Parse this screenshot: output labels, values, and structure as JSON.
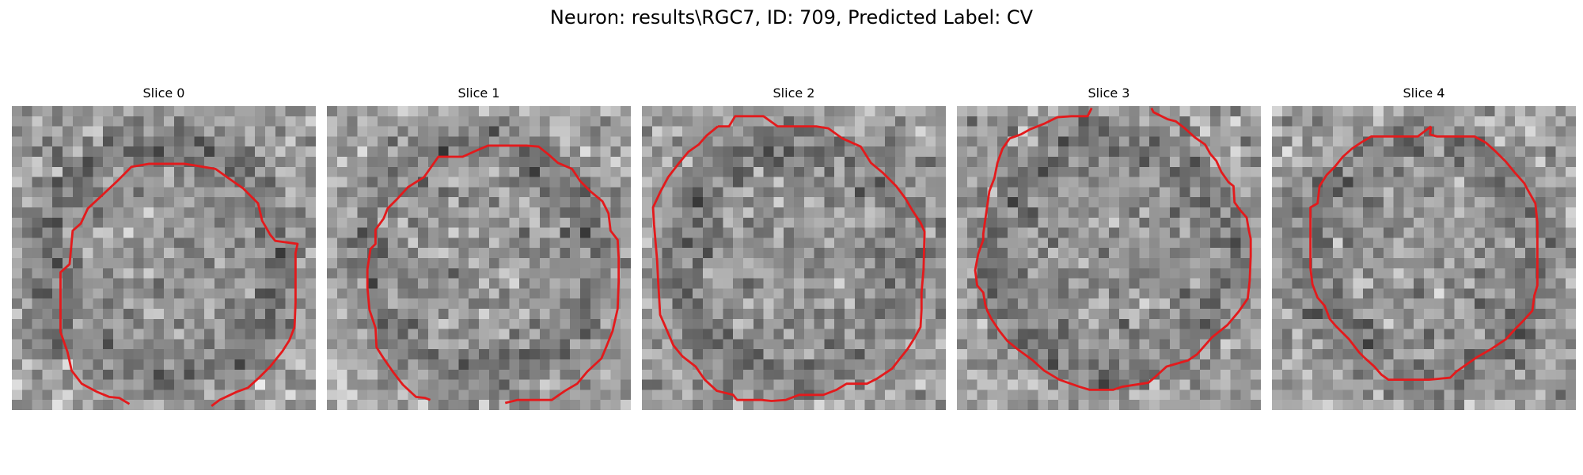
{
  "figure": {
    "title": "Neuron: results\\RGC7, ID: 709, Predicted Label: CV",
    "outline_color": "#e31a1c",
    "colormap": "gray"
  },
  "panels": [
    {
      "title": "Slice 0"
    },
    {
      "title": "Slice 1"
    },
    {
      "title": "Slice 2"
    },
    {
      "title": "Slice 3"
    },
    {
      "title": "Slice 4"
    }
  ]
}
